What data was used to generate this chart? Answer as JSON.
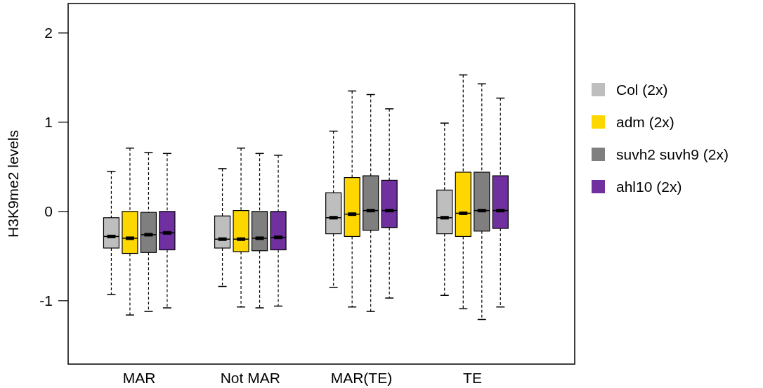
{
  "chart_data": {
    "type": "box",
    "ylabel": "H3K9me2 levels",
    "categories": [
      "MAR",
      "Not MAR",
      "MAR(TE)",
      "TE"
    ],
    "ylim": [
      -1.71,
      2.33
    ],
    "yticks": [
      -1,
      0,
      1,
      2
    ],
    "grid": false,
    "legend": "right",
    "series": [
      {
        "name": "Col (2x)",
        "color": "#bebebe",
        "boxes": [
          {
            "low": -0.93,
            "q1": -0.41,
            "median": -0.28,
            "q3": -0.07,
            "high": 0.45
          },
          {
            "low": -0.84,
            "q1": -0.41,
            "median": -0.31,
            "q3": -0.05,
            "high": 0.48
          },
          {
            "low": -0.85,
            "q1": -0.25,
            "median": -0.07,
            "q3": 0.21,
            "high": 0.9
          },
          {
            "low": -0.94,
            "q1": -0.25,
            "median": -0.07,
            "q3": 0.24,
            "high": 0.99
          }
        ]
      },
      {
        "name": "adm (2x)",
        "color": "#ffd700",
        "boxes": [
          {
            "low": -1.16,
            "q1": -0.47,
            "median": -0.3,
            "q3": 0.0,
            "high": 0.71
          },
          {
            "low": -1.07,
            "q1": -0.45,
            "median": -0.31,
            "q3": 0.01,
            "high": 0.71
          },
          {
            "low": -1.07,
            "q1": -0.28,
            "median": -0.03,
            "q3": 0.38,
            "high": 1.35
          },
          {
            "low": -1.09,
            "q1": -0.28,
            "median": -0.02,
            "q3": 0.44,
            "high": 1.53
          }
        ]
      },
      {
        "name": "suvh2 suvh9 (2x)",
        "color": "#7f7f7f",
        "boxes": [
          {
            "low": -1.12,
            "q1": -0.46,
            "median": -0.26,
            "q3": -0.01,
            "high": 0.66
          },
          {
            "low": -1.08,
            "q1": -0.44,
            "median": -0.3,
            "q3": 0.0,
            "high": 0.65
          },
          {
            "low": -1.12,
            "q1": -0.21,
            "median": 0.01,
            "q3": 0.4,
            "high": 1.31
          },
          {
            "low": -1.21,
            "q1": -0.22,
            "median": 0.01,
            "q3": 0.44,
            "high": 1.43
          }
        ]
      },
      {
        "name": "ahl10 (2x)",
        "color": "#7030a0",
        "boxes": [
          {
            "low": -1.08,
            "q1": -0.43,
            "median": -0.24,
            "q3": 0.0,
            "high": 0.65
          },
          {
            "low": -1.06,
            "q1": -0.43,
            "median": -0.29,
            "q3": 0.0,
            "high": 0.63
          },
          {
            "low": -0.97,
            "q1": -0.18,
            "median": 0.01,
            "q3": 0.35,
            "high": 1.15
          },
          {
            "low": -1.07,
            "q1": -0.19,
            "median": 0.01,
            "q3": 0.4,
            "high": 1.27
          }
        ]
      }
    ]
  }
}
